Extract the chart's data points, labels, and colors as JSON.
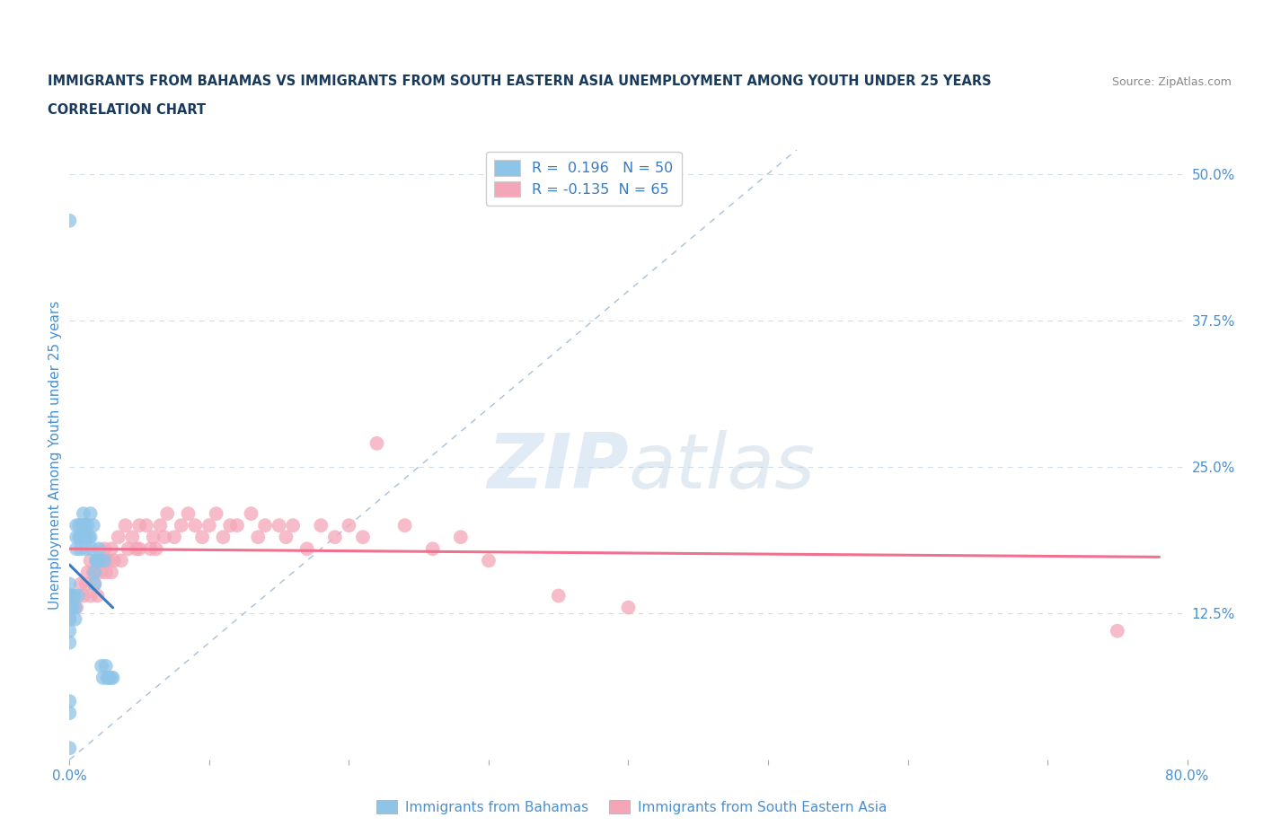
{
  "title_line1": "IMMIGRANTS FROM BAHAMAS VS IMMIGRANTS FROM SOUTH EASTERN ASIA UNEMPLOYMENT AMONG YOUTH UNDER 25 YEARS",
  "title_line2": "CORRELATION CHART",
  "source": "Source: ZipAtlas.com",
  "ylabel": "Unemployment Among Youth under 25 years",
  "xlim": [
    0.0,
    0.8
  ],
  "ylim": [
    0.0,
    0.52
  ],
  "yticks_right": [
    0.0,
    0.125,
    0.25,
    0.375,
    0.5
  ],
  "ytick_labels_right": [
    "",
    "12.5%",
    "25.0%",
    "37.5%",
    "50.0%"
  ],
  "watermark_zip": "ZIP",
  "watermark_atlas": "atlas",
  "r_bahamas": 0.196,
  "n_bahamas": 50,
  "r_sea": -0.135,
  "n_sea": 65,
  "color_bahamas": "#8ec4e8",
  "color_bahamas_line": "#3a7abf",
  "color_sea": "#f4a6b8",
  "color_sea_line": "#f07090",
  "color_diagonal": "#a8c0d8",
  "title_color": "#1a3a5c",
  "axis_label_color": "#4a90d0",
  "right_tick_color": "#4a90d0",
  "background_color": "#ffffff",
  "grid_color": "#d0dce8",
  "bahamas_x": [
    0.0,
    0.0,
    0.0,
    0.0,
    0.0,
    0.0,
    0.0,
    0.0,
    0.0,
    0.0,
    0.002,
    0.002,
    0.003,
    0.004,
    0.004,
    0.005,
    0.005,
    0.005,
    0.006,
    0.007,
    0.007,
    0.008,
    0.008,
    0.009,
    0.009,
    0.01,
    0.01,
    0.011,
    0.012,
    0.012,
    0.013,
    0.014,
    0.015,
    0.015,
    0.016,
    0.017,
    0.018,
    0.018,
    0.019,
    0.02,
    0.021,
    0.022,
    0.023,
    0.024,
    0.025,
    0.026,
    0.027,
    0.028,
    0.03,
    0.031
  ],
  "bahamas_y": [
    0.46,
    0.15,
    0.14,
    0.13,
    0.12,
    0.11,
    0.1,
    0.05,
    0.04,
    0.01,
    0.14,
    0.13,
    0.14,
    0.13,
    0.12,
    0.2,
    0.19,
    0.18,
    0.14,
    0.2,
    0.19,
    0.19,
    0.18,
    0.2,
    0.19,
    0.2,
    0.21,
    0.2,
    0.19,
    0.18,
    0.2,
    0.19,
    0.21,
    0.19,
    0.18,
    0.2,
    0.16,
    0.15,
    0.17,
    0.17,
    0.18,
    0.17,
    0.08,
    0.07,
    0.17,
    0.08,
    0.07,
    0.07,
    0.07,
    0.07
  ],
  "sea_x": [
    0.0,
    0.0,
    0.005,
    0.008,
    0.01,
    0.012,
    0.013,
    0.015,
    0.015,
    0.017,
    0.018,
    0.02,
    0.02,
    0.022,
    0.024,
    0.025,
    0.026,
    0.028,
    0.03,
    0.03,
    0.032,
    0.035,
    0.037,
    0.04,
    0.042,
    0.045,
    0.048,
    0.05,
    0.05,
    0.055,
    0.058,
    0.06,
    0.062,
    0.065,
    0.068,
    0.07,
    0.075,
    0.08,
    0.085,
    0.09,
    0.095,
    0.1,
    0.105,
    0.11,
    0.115,
    0.12,
    0.13,
    0.135,
    0.14,
    0.15,
    0.155,
    0.16,
    0.17,
    0.18,
    0.19,
    0.2,
    0.21,
    0.22,
    0.24,
    0.26,
    0.28,
    0.3,
    0.35,
    0.4,
    0.75
  ],
  "sea_y": [
    0.14,
    0.12,
    0.13,
    0.15,
    0.14,
    0.15,
    0.16,
    0.17,
    0.14,
    0.16,
    0.15,
    0.17,
    0.14,
    0.16,
    0.17,
    0.18,
    0.16,
    0.17,
    0.18,
    0.16,
    0.17,
    0.19,
    0.17,
    0.2,
    0.18,
    0.19,
    0.18,
    0.2,
    0.18,
    0.2,
    0.18,
    0.19,
    0.18,
    0.2,
    0.19,
    0.21,
    0.19,
    0.2,
    0.21,
    0.2,
    0.19,
    0.2,
    0.21,
    0.19,
    0.2,
    0.2,
    0.21,
    0.19,
    0.2,
    0.2,
    0.19,
    0.2,
    0.18,
    0.2,
    0.19,
    0.2,
    0.19,
    0.27,
    0.2,
    0.18,
    0.19,
    0.17,
    0.14,
    0.13,
    0.11
  ]
}
